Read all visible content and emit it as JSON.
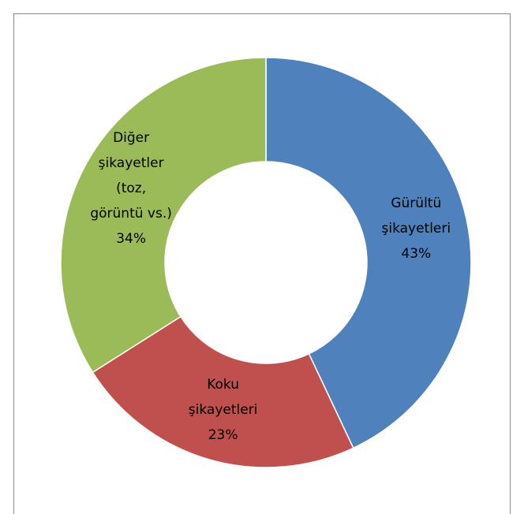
{
  "chart_data": {
    "type": "donut",
    "categories": [
      "Gürültü şikayetleri",
      "Koku şikayetleri",
      "Diğer şikayetler (toz, görüntü vs.)"
    ],
    "values": [
      43,
      23,
      34
    ],
    "value_labels": [
      "43%",
      "23%",
      "34%"
    ],
    "colors": [
      "#4f81bd",
      "#c0504d",
      "#9bbb59"
    ]
  }
}
